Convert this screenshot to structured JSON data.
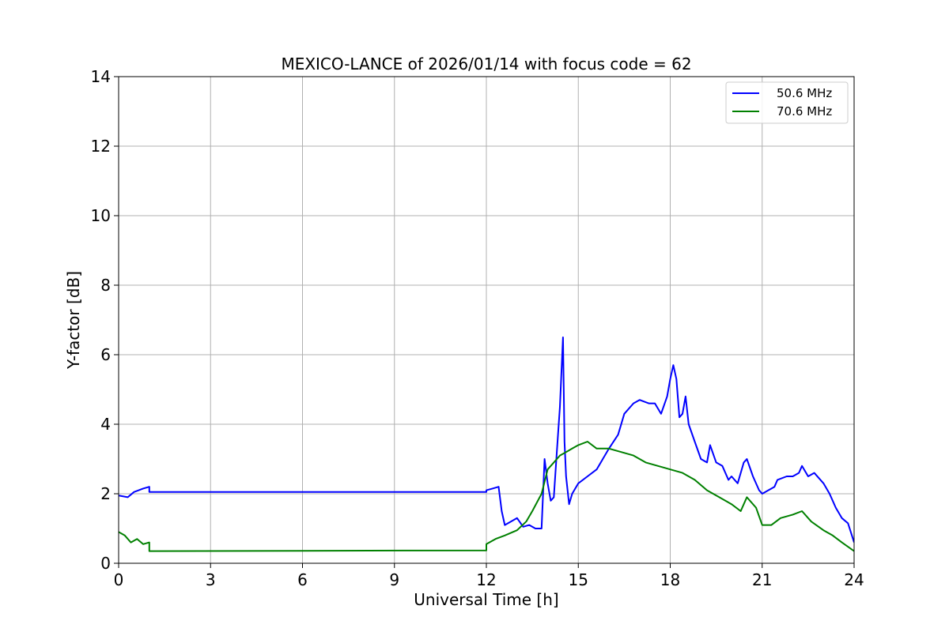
{
  "chart_data": {
    "type": "line",
    "title": "MEXICO-LANCE of 2026/01/14 with focus code = 62",
    "xlabel": "Universal Time [h]",
    "ylabel": "Y-factor [dB]",
    "xlim": [
      0,
      24
    ],
    "ylim": [
      0,
      14
    ],
    "xticks": [
      0,
      3,
      6,
      9,
      12,
      15,
      18,
      21,
      24
    ],
    "yticks": [
      0,
      2,
      4,
      6,
      8,
      10,
      12,
      14
    ],
    "grid": true,
    "legend_position": "top-right",
    "series": [
      {
        "name": "50.6 MHz",
        "color": "#0000ff",
        "x": [
          0.0,
          0.3,
          0.5,
          0.8,
          1.0,
          1.0,
          12.0,
          12.0,
          12.2,
          12.4,
          12.5,
          12.6,
          12.8,
          13.0,
          13.2,
          13.4,
          13.6,
          13.8,
          13.9,
          14.0,
          14.1,
          14.2,
          14.3,
          14.4,
          14.5,
          14.55,
          14.6,
          14.7,
          14.8,
          15.0,
          15.3,
          15.6,
          16.0,
          16.3,
          16.5,
          16.8,
          17.0,
          17.3,
          17.5,
          17.7,
          17.9,
          18.0,
          18.1,
          18.2,
          18.3,
          18.4,
          18.5,
          18.6,
          18.8,
          19.0,
          19.2,
          19.3,
          19.5,
          19.7,
          19.9,
          20.0,
          20.2,
          20.4,
          20.5,
          20.7,
          20.9,
          21.0,
          21.2,
          21.4,
          21.5,
          21.8,
          22.0,
          22.2,
          22.3,
          22.5,
          22.7,
          23.0,
          23.2,
          23.4,
          23.6,
          23.8,
          24.0
        ],
        "y": [
          1.95,
          1.9,
          2.05,
          2.15,
          2.2,
          2.05,
          2.05,
          2.1,
          2.15,
          2.2,
          1.5,
          1.1,
          1.2,
          1.3,
          1.05,
          1.1,
          1.0,
          1.0,
          3.0,
          2.3,
          1.8,
          1.9,
          3.2,
          4.5,
          6.5,
          3.5,
          2.5,
          1.7,
          2.0,
          2.3,
          2.5,
          2.7,
          3.3,
          3.7,
          4.3,
          4.6,
          4.7,
          4.6,
          4.6,
          4.3,
          4.8,
          5.3,
          5.7,
          5.3,
          4.2,
          4.3,
          4.8,
          4.0,
          3.5,
          3.0,
          2.9,
          3.4,
          2.9,
          2.8,
          2.4,
          2.5,
          2.3,
          2.9,
          3.0,
          2.5,
          2.1,
          2.0,
          2.1,
          2.2,
          2.4,
          2.5,
          2.5,
          2.6,
          2.8,
          2.5,
          2.6,
          2.3,
          2.0,
          1.6,
          1.3,
          1.15,
          0.6
        ]
      },
      {
        "name": "70.6 MHz",
        "color": "#008000",
        "x": [
          0.0,
          0.2,
          0.4,
          0.6,
          0.8,
          1.0,
          1.0,
          12.0,
          12.0,
          12.3,
          12.6,
          13.0,
          13.3,
          13.5,
          13.8,
          14.0,
          14.2,
          14.4,
          14.6,
          14.8,
          15.0,
          15.3,
          15.6,
          16.0,
          16.4,
          16.8,
          17.2,
          17.6,
          18.0,
          18.4,
          18.8,
          19.2,
          19.6,
          20.0,
          20.3,
          20.5,
          20.8,
          21.0,
          21.3,
          21.6,
          22.0,
          22.3,
          22.6,
          23.0,
          23.3,
          23.6,
          24.0
        ],
        "y": [
          0.9,
          0.8,
          0.6,
          0.7,
          0.55,
          0.6,
          0.35,
          0.37,
          0.55,
          0.7,
          0.8,
          0.95,
          1.2,
          1.5,
          2.0,
          2.7,
          2.9,
          3.1,
          3.2,
          3.3,
          3.4,
          3.5,
          3.3,
          3.3,
          3.2,
          3.1,
          2.9,
          2.8,
          2.7,
          2.6,
          2.4,
          2.1,
          1.9,
          1.7,
          1.5,
          1.9,
          1.6,
          1.1,
          1.1,
          1.3,
          1.4,
          1.5,
          1.2,
          0.95,
          0.8,
          0.6,
          0.35
        ]
      }
    ]
  }
}
